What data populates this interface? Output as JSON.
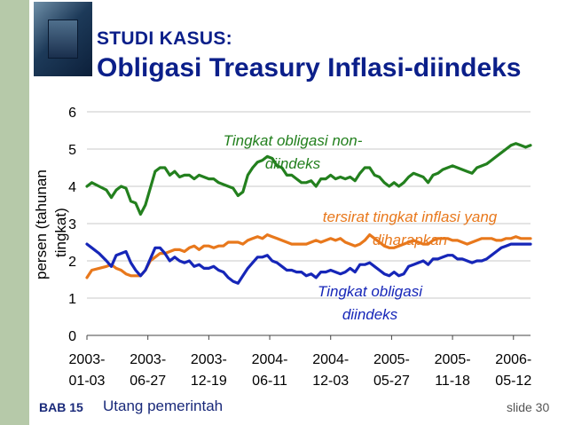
{
  "header": {
    "kicker": "STUDI KASUS:",
    "title": "Obligasi Treasury Inflasi-diindeks"
  },
  "footer": {
    "chapter": "BAB 15",
    "subject": "Utang pemerintah",
    "slide": "slide 30"
  },
  "colors": {
    "sidebar": "#b6c9a9",
    "title": "#0b1f8a",
    "nonindexed": "#23801e",
    "expected_inflation": "#e8781c",
    "indexed": "#1626b8"
  },
  "icons": [
    "slide-logo-icon"
  ],
  "chart_data": {
    "type": "line",
    "ylabel_lines": [
      "persen (tahunan",
      "tingkat)"
    ],
    "ylim": [
      0,
      6
    ],
    "yticks": [
      0,
      1,
      2,
      3,
      4,
      5,
      6
    ],
    "grid": true,
    "xlim": [
      "2003-01-03",
      "2006-06-30"
    ],
    "xticks": [
      {
        "date": "2003-01-03",
        "line1": "2003-",
        "line2": "01-03"
      },
      {
        "date": "2003-06-27",
        "line1": "2003-",
        "line2": "06-27"
      },
      {
        "date": "2003-12-19",
        "line1": "2003-",
        "line2": "12-19"
      },
      {
        "date": "2004-06-11",
        "line1": "2004-",
        "line2": "06-11"
      },
      {
        "date": "2004-12-03",
        "line1": "2004-",
        "line2": "12-03"
      },
      {
        "date": "2005-05-27",
        "line1": "2005-",
        "line2": "05-27"
      },
      {
        "date": "2005-11-18",
        "line1": "2005-",
        "line2": "11-18"
      },
      {
        "date": "2006-05-12",
        "line1": "2006-",
        "line2": "05-12"
      }
    ],
    "series": [
      {
        "key": "nonindexed",
        "color": "#23801e",
        "label_lines": [
          "Tingkat obligasi non-",
          "diindeks"
        ],
        "x": [
          "2003-01-03",
          "2003-01-17",
          "2003-02-07",
          "2003-02-28",
          "2003-03-14",
          "2003-03-28",
          "2003-04-11",
          "2003-04-25",
          "2003-05-09",
          "2003-05-23",
          "2003-06-06",
          "2003-06-20",
          "2003-07-04",
          "2003-07-18",
          "2003-08-01",
          "2003-08-15",
          "2003-08-29",
          "2003-09-12",
          "2003-09-26",
          "2003-10-10",
          "2003-10-24",
          "2003-11-07",
          "2003-11-21",
          "2003-12-05",
          "2003-12-19",
          "2004-01-02",
          "2004-01-16",
          "2004-01-30",
          "2004-02-13",
          "2004-02-27",
          "2004-03-12",
          "2004-03-26",
          "2004-04-09",
          "2004-04-23",
          "2004-05-07",
          "2004-05-21",
          "2004-06-04",
          "2004-06-18",
          "2004-07-02",
          "2004-07-16",
          "2004-07-30",
          "2004-08-13",
          "2004-08-27",
          "2004-09-10",
          "2004-09-24",
          "2004-10-08",
          "2004-10-22",
          "2004-11-05",
          "2004-11-19",
          "2004-12-03",
          "2004-12-17",
          "2004-12-31",
          "2005-01-14",
          "2005-01-28",
          "2005-02-11",
          "2005-02-25",
          "2005-03-11",
          "2005-03-25",
          "2005-04-08",
          "2005-04-22",
          "2005-05-06",
          "2005-05-20",
          "2005-06-03",
          "2005-06-17",
          "2005-07-01",
          "2005-07-15",
          "2005-07-29",
          "2005-08-12",
          "2005-08-26",
          "2005-09-09",
          "2005-09-23",
          "2005-10-07",
          "2005-10-21",
          "2005-11-04",
          "2005-11-18",
          "2005-12-02",
          "2005-12-16",
          "2005-12-30",
          "2006-01-13",
          "2006-01-27",
          "2006-02-10",
          "2006-02-24",
          "2006-03-10",
          "2006-03-24",
          "2006-04-07",
          "2006-04-21",
          "2006-05-05",
          "2006-05-19",
          "2006-06-02",
          "2006-06-16",
          "2006-06-30"
        ],
        "y": [
          4.0,
          4.1,
          4.0,
          3.9,
          3.7,
          3.9,
          4.0,
          3.95,
          3.6,
          3.55,
          3.25,
          3.5,
          3.95,
          4.4,
          4.5,
          4.5,
          4.3,
          4.4,
          4.25,
          4.3,
          4.3,
          4.2,
          4.3,
          4.25,
          4.2,
          4.2,
          4.1,
          4.05,
          4.0,
          3.95,
          3.75,
          3.85,
          4.3,
          4.5,
          4.65,
          4.7,
          4.8,
          4.75,
          4.55,
          4.5,
          4.3,
          4.3,
          4.2,
          4.1,
          4.1,
          4.15,
          4.0,
          4.2,
          4.2,
          4.3,
          4.2,
          4.25,
          4.2,
          4.25,
          4.15,
          4.35,
          4.5,
          4.5,
          4.3,
          4.25,
          4.1,
          4.0,
          4.1,
          4.0,
          4.1,
          4.25,
          4.35,
          4.3,
          4.25,
          4.1,
          4.3,
          4.35,
          4.45,
          4.5,
          4.55,
          4.5,
          4.45,
          4.4,
          4.35,
          4.5,
          4.55,
          4.6,
          4.7,
          4.8,
          4.9,
          5.0,
          5.1,
          5.15,
          5.1,
          5.05,
          5.1
        ]
      },
      {
        "key": "expected_inflation",
        "color": "#e8781c",
        "label_lines": [
          "tersirat tingkat inflasi yang",
          "diharapkan"
        ],
        "x": [
          "2003-01-03",
          "2003-01-17",
          "2003-02-07",
          "2003-02-28",
          "2003-03-14",
          "2003-03-28",
          "2003-04-11",
          "2003-04-25",
          "2003-05-09",
          "2003-05-23",
          "2003-06-06",
          "2003-06-20",
          "2003-07-04",
          "2003-07-18",
          "2003-08-01",
          "2003-08-15",
          "2003-08-29",
          "2003-09-12",
          "2003-09-26",
          "2003-10-10",
          "2003-10-24",
          "2003-11-07",
          "2003-11-21",
          "2003-12-05",
          "2003-12-19",
          "2004-01-02",
          "2004-01-16",
          "2004-01-30",
          "2004-02-13",
          "2004-02-27",
          "2004-03-12",
          "2004-03-26",
          "2004-04-09",
          "2004-04-23",
          "2004-05-07",
          "2004-05-21",
          "2004-06-04",
          "2004-06-18",
          "2004-07-02",
          "2004-07-16",
          "2004-07-30",
          "2004-08-13",
          "2004-08-27",
          "2004-09-10",
          "2004-09-24",
          "2004-10-08",
          "2004-10-22",
          "2004-11-05",
          "2004-11-19",
          "2004-12-03",
          "2004-12-17",
          "2004-12-31",
          "2005-01-14",
          "2005-01-28",
          "2005-02-11",
          "2005-02-25",
          "2005-03-11",
          "2005-03-25",
          "2005-04-08",
          "2005-04-22",
          "2005-05-06",
          "2005-05-20",
          "2005-06-03",
          "2005-06-17",
          "2005-07-01",
          "2005-07-15",
          "2005-07-29",
          "2005-08-12",
          "2005-08-26",
          "2005-09-09",
          "2005-09-23",
          "2005-10-07",
          "2005-10-21",
          "2005-11-04",
          "2005-11-18",
          "2005-12-02",
          "2005-12-16",
          "2005-12-30",
          "2006-01-13",
          "2006-01-27",
          "2006-02-10",
          "2006-02-24",
          "2006-03-10",
          "2006-03-24",
          "2006-04-07",
          "2006-04-21",
          "2006-05-05",
          "2006-05-19",
          "2006-06-02",
          "2006-06-16",
          "2006-06-30"
        ],
        "y": [
          1.55,
          1.75,
          1.8,
          1.85,
          1.9,
          1.8,
          1.75,
          1.65,
          1.6,
          1.6,
          1.6,
          1.75,
          2.0,
          2.1,
          2.2,
          2.2,
          2.25,
          2.3,
          2.3,
          2.25,
          2.35,
          2.4,
          2.3,
          2.4,
          2.4,
          2.35,
          2.4,
          2.4,
          2.5,
          2.5,
          2.5,
          2.45,
          2.55,
          2.6,
          2.65,
          2.6,
          2.7,
          2.65,
          2.6,
          2.55,
          2.5,
          2.45,
          2.45,
          2.45,
          2.45,
          2.5,
          2.55,
          2.5,
          2.55,
          2.6,
          2.55,
          2.6,
          2.5,
          2.45,
          2.4,
          2.45,
          2.55,
          2.7,
          2.6,
          2.5,
          2.4,
          2.35,
          2.35,
          2.4,
          2.45,
          2.5,
          2.55,
          2.5,
          2.45,
          2.45,
          2.55,
          2.6,
          2.6,
          2.6,
          2.55,
          2.55,
          2.5,
          2.45,
          2.5,
          2.55,
          2.6,
          2.6,
          2.6,
          2.55,
          2.55,
          2.6,
          2.6,
          2.65,
          2.6,
          2.6,
          2.6
        ]
      },
      {
        "key": "indexed",
        "color": "#1626b8",
        "label_lines": [
          "Tingkat obligasi",
          "diindeks"
        ],
        "x": [
          "2003-01-03",
          "2003-01-17",
          "2003-02-07",
          "2003-02-28",
          "2003-03-14",
          "2003-03-28",
          "2003-04-11",
          "2003-04-25",
          "2003-05-09",
          "2003-05-23",
          "2003-06-06",
          "2003-06-20",
          "2003-07-04",
          "2003-07-18",
          "2003-08-01",
          "2003-08-15",
          "2003-08-29",
          "2003-09-12",
          "2003-09-26",
          "2003-10-10",
          "2003-10-24",
          "2003-11-07",
          "2003-11-21",
          "2003-12-05",
          "2003-12-19",
          "2004-01-02",
          "2004-01-16",
          "2004-01-30",
          "2004-02-13",
          "2004-02-27",
          "2004-03-12",
          "2004-03-26",
          "2004-04-09",
          "2004-04-23",
          "2004-05-07",
          "2004-05-21",
          "2004-06-04",
          "2004-06-18",
          "2004-07-02",
          "2004-07-16",
          "2004-07-30",
          "2004-08-13",
          "2004-08-27",
          "2004-09-10",
          "2004-09-24",
          "2004-10-08",
          "2004-10-22",
          "2004-11-05",
          "2004-11-19",
          "2004-12-03",
          "2004-12-17",
          "2004-12-31",
          "2005-01-14",
          "2005-01-28",
          "2005-02-11",
          "2005-02-25",
          "2005-03-11",
          "2005-03-25",
          "2005-04-08",
          "2005-04-22",
          "2005-05-06",
          "2005-05-20",
          "2005-06-03",
          "2005-06-17",
          "2005-07-01",
          "2005-07-15",
          "2005-07-29",
          "2005-08-12",
          "2005-08-26",
          "2005-09-09",
          "2005-09-23",
          "2005-10-07",
          "2005-10-21",
          "2005-11-04",
          "2005-11-18",
          "2005-12-02",
          "2005-12-16",
          "2005-12-30",
          "2006-01-13",
          "2006-01-27",
          "2006-02-10",
          "2006-02-24",
          "2006-03-10",
          "2006-03-24",
          "2006-04-07",
          "2006-04-21",
          "2006-05-05",
          "2006-05-19",
          "2006-06-02",
          "2006-06-16",
          "2006-06-30"
        ],
        "y": [
          2.45,
          2.35,
          2.2,
          2.0,
          1.85,
          2.15,
          2.2,
          2.25,
          1.95,
          1.75,
          1.6,
          1.75,
          2.05,
          2.35,
          2.35,
          2.2,
          2.0,
          2.1,
          2.0,
          1.95,
          2.0,
          1.85,
          1.9,
          1.8,
          1.8,
          1.85,
          1.75,
          1.7,
          1.55,
          1.45,
          1.4,
          1.6,
          1.8,
          1.95,
          2.1,
          2.1,
          2.15,
          2.0,
          1.95,
          1.85,
          1.75,
          1.75,
          1.7,
          1.7,
          1.6,
          1.65,
          1.55,
          1.7,
          1.7,
          1.75,
          1.7,
          1.65,
          1.7,
          1.8,
          1.7,
          1.9,
          1.9,
          1.95,
          1.85,
          1.75,
          1.65,
          1.6,
          1.7,
          1.6,
          1.65,
          1.85,
          1.9,
          1.95,
          2.0,
          1.9,
          2.05,
          2.05,
          2.1,
          2.15,
          2.15,
          2.05,
          2.05,
          2.0,
          1.95,
          2.0,
          2.0,
          2.05,
          2.15,
          2.25,
          2.35,
          2.4,
          2.45,
          2.45,
          2.45,
          2.45,
          2.45
        ]
      }
    ]
  }
}
